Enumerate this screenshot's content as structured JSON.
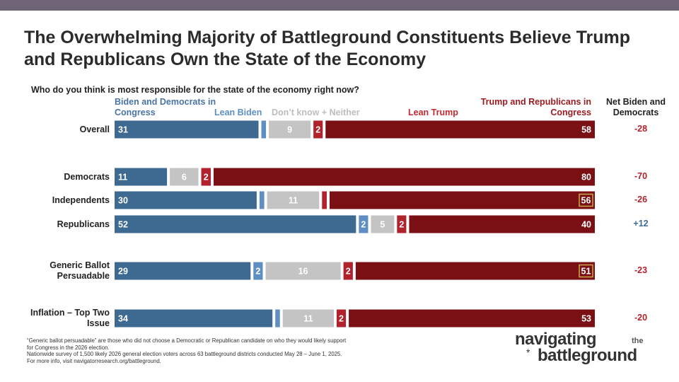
{
  "title": "The Overwhelming Majority of Battleground Constituents Believe Trump and Republicans Own the State of the Economy",
  "question": "Who do you think is most responsible for the state of the economy right now?",
  "headers": {
    "biden": "Biden and Democrats in Congress",
    "lean_biden": "Lean Biden",
    "dont_know": "Don’t know + Neither",
    "lean_trump": "Lean Trump",
    "trump": "Trump and Republicans in Congress",
    "net": "Net Biden and Democrats"
  },
  "colors": {
    "biden": "#3e6a92",
    "lean_biden": "#5f8fc2",
    "dont_know": "#c4c4c4",
    "lean_trump": "#b1222c",
    "trump": "#7a1014",
    "net_negative": "#b1222c",
    "net_positive": "#3e6a92",
    "biden_header": "#4a74a6",
    "lean_biden_header": "#5f8fc2",
    "dont_know_header": "#bdbdbd",
    "lean_trump_header": "#c32a32",
    "trump_header": "#9b1a1f"
  },
  "chart_data": {
    "type": "bar",
    "orientation": "horizontal-stacked",
    "categories": [
      "Overall",
      "Democrats",
      "Independents",
      "Republicans",
      "Generic Ballot Persuadable",
      "Inflation – Top Two Issue"
    ],
    "category_lines": [
      [
        "Overall"
      ],
      [
        "Democrats"
      ],
      [
        "Independents"
      ],
      [
        "Republicans"
      ],
      [
        "Generic Ballot",
        "Persuadable"
      ],
      [
        "Inflation – Top Two",
        "Issue"
      ]
    ],
    "series": [
      {
        "name": "Biden and Democrats in Congress",
        "values": [
          31,
          11,
          30,
          52,
          29,
          34
        ]
      },
      {
        "name": "Lean Biden",
        "values": [
          1,
          0,
          1,
          2,
          2,
          1
        ]
      },
      {
        "name": "Don’t know + Neither",
        "values": [
          9,
          6,
          11,
          5,
          16,
          11
        ]
      },
      {
        "name": "Lean Trump",
        "values": [
          2,
          2,
          1,
          2,
          2,
          2
        ]
      },
      {
        "name": "Trump and Republicans in Congress",
        "values": [
          58,
          80,
          56,
          40,
          51,
          53
        ]
      }
    ],
    "value_labels": [
      [
        "31",
        "",
        "9",
        "2",
        "58"
      ],
      [
        "11",
        "",
        "6",
        "2",
        "80"
      ],
      [
        "30",
        "",
        "11",
        "",
        "56"
      ],
      [
        "52",
        "2",
        "5",
        "2",
        "40"
      ],
      [
        "29",
        "2",
        "16",
        "2",
        "51"
      ],
      [
        "34",
        "",
        "11",
        "2",
        "53"
      ]
    ],
    "boxed_labels": [
      [
        2,
        4
      ],
      [
        4,
        4
      ]
    ],
    "net": [
      "-28",
      "-70",
      "-26",
      "+12",
      "-23",
      "-20"
    ],
    "net_sign": [
      "neg",
      "neg",
      "neg",
      "pos",
      "neg",
      "neg"
    ],
    "xlim": [
      0,
      100
    ]
  },
  "footnote": [
    "“Generic ballot persuadable” are those who did not choose a Democratic or Republican candidate on who they would likely support",
    "for Congress in the 2026 election.",
    "Nationwide survey of 1,500 likely 2026 general election voters across 63 battleground districts conducted May 28 – June 1, 2025.",
    "For more info, visit navigatorresearch.org/battleground."
  ],
  "logo": {
    "line1": "navigating",
    "the": "the",
    "line2": "battleground",
    "star": "*"
  }
}
